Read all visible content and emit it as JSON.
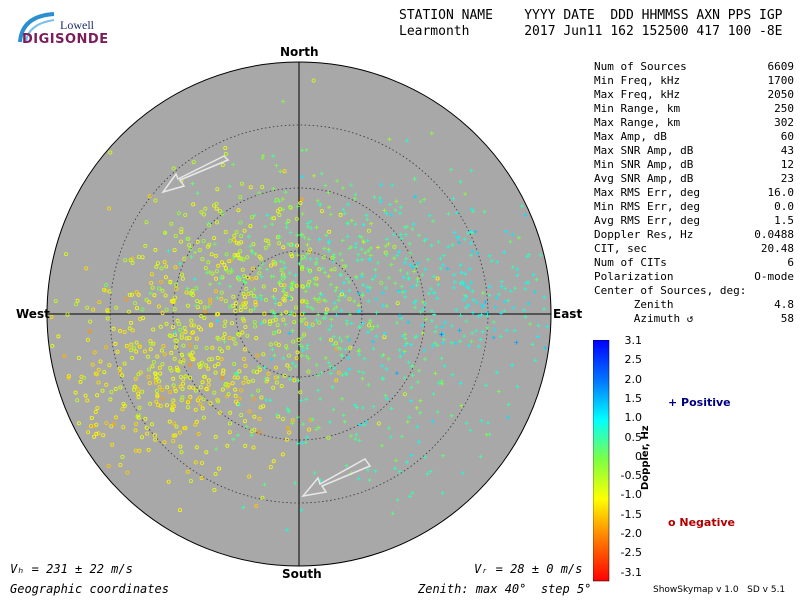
{
  "logo": {
    "line1": "Lowell",
    "line2": "DIGISONDE"
  },
  "header": {
    "line1": "STATION NAME    YYYY DATE  DDD HHMMSS AXN PPS IGP",
    "line2": "Learmonth       2017 Jun11 162 152500 417 100 -8E"
  },
  "stats": [
    {
      "label": "Num of Sources",
      "value": "6609"
    },
    {
      "label": "Min Freq, kHz",
      "value": "1700"
    },
    {
      "label": "Max Freq, kHz",
      "value": "2050"
    },
    {
      "label": "Min Range, km",
      "value": "250"
    },
    {
      "label": "Max Range, km",
      "value": "302"
    },
    {
      "label": "Max Amp, dB",
      "value": "60"
    },
    {
      "label": "Max SNR Amp, dB",
      "value": "43"
    },
    {
      "label": "Min SNR Amp, dB",
      "value": "12"
    },
    {
      "label": "Avg SNR Amp, dB",
      "value": "23"
    },
    {
      "label": "Max RMS Err, deg",
      "value": "16.0"
    },
    {
      "label": "Min RMS Err, deg",
      "value": "0.0"
    },
    {
      "label": "Avg RMS Err, deg",
      "value": "1.5"
    },
    {
      "label": "Doppler Res, Hz",
      "value": "0.0488"
    },
    {
      "label": "CIT, sec",
      "value": "20.48"
    },
    {
      "label": "Num of CITs",
      "value": "6"
    },
    {
      "label": "Polarization",
      "value": "O-mode"
    },
    {
      "label": "Center of Sources, deg:",
      "value": ""
    },
    {
      "label": "      Zenith",
      "value": "4.8"
    },
    {
      "label": "      Azimuth ↺",
      "value": "58"
    }
  ],
  "directions": {
    "north": "North",
    "south": "South",
    "east": "East",
    "west": "West"
  },
  "colorbar": {
    "title": "Doppler, Hz",
    "ticks": [
      "3.1",
      "2.5",
      "2.0",
      "1.5",
      "1.0",
      "0.5",
      "0",
      "-0.5",
      "-1.0",
      "-1.5",
      "-2.0",
      "-2.5",
      "-3.1"
    ],
    "range": [
      -3.1,
      3.1
    ]
  },
  "legend": {
    "positive": "+ Positive",
    "negative": "o Negative"
  },
  "footer": {
    "vh": "Vₕ = 231 ± 22 m/s",
    "vz": "Vᵣ = 28 ± 0 m/s",
    "coords": "Geographic coordinates",
    "zenith": "Zenith: max 40°  step 5°",
    "version": "ShowSkymap v 1.0   SD v 5.1"
  },
  "chart_data": {
    "type": "scatter",
    "projection": "polar-skymap",
    "zenith_max_deg": 40,
    "zenith_step_deg": 5,
    "center_of_sources": {
      "zenith_deg": 4.8,
      "azimuth_deg": 58
    },
    "velocity_arrows": [
      {
        "label": "upper",
        "direction": "toward-west-southwest"
      },
      {
        "label": "lower",
        "direction": "toward-west-southwest"
      }
    ],
    "clusters": [
      {
        "name": "negative",
        "marker": "circle",
        "doppler_hz": -1.0,
        "center_zenith_deg": 22,
        "center_azimuth_deg": 245,
        "count": 1300
      },
      {
        "name": "negative",
        "marker": "circle",
        "doppler_hz": -0.6,
        "center_zenith_deg": 12,
        "center_azimuth_deg": 295,
        "count": 900
      },
      {
        "name": "positive",
        "marker": "plus",
        "doppler_hz": 0.3,
        "center_zenith_deg": 8,
        "center_azimuth_deg": 20,
        "count": 1000
      },
      {
        "name": "positive",
        "marker": "plus",
        "doppler_hz": 0.9,
        "center_zenith_deg": 25,
        "center_azimuth_deg": 80,
        "count": 800
      },
      {
        "name": "positive",
        "marker": "plus",
        "doppler_hz": 0.5,
        "center_zenith_deg": 18,
        "center_azimuth_deg": 140,
        "count": 500
      }
    ]
  }
}
